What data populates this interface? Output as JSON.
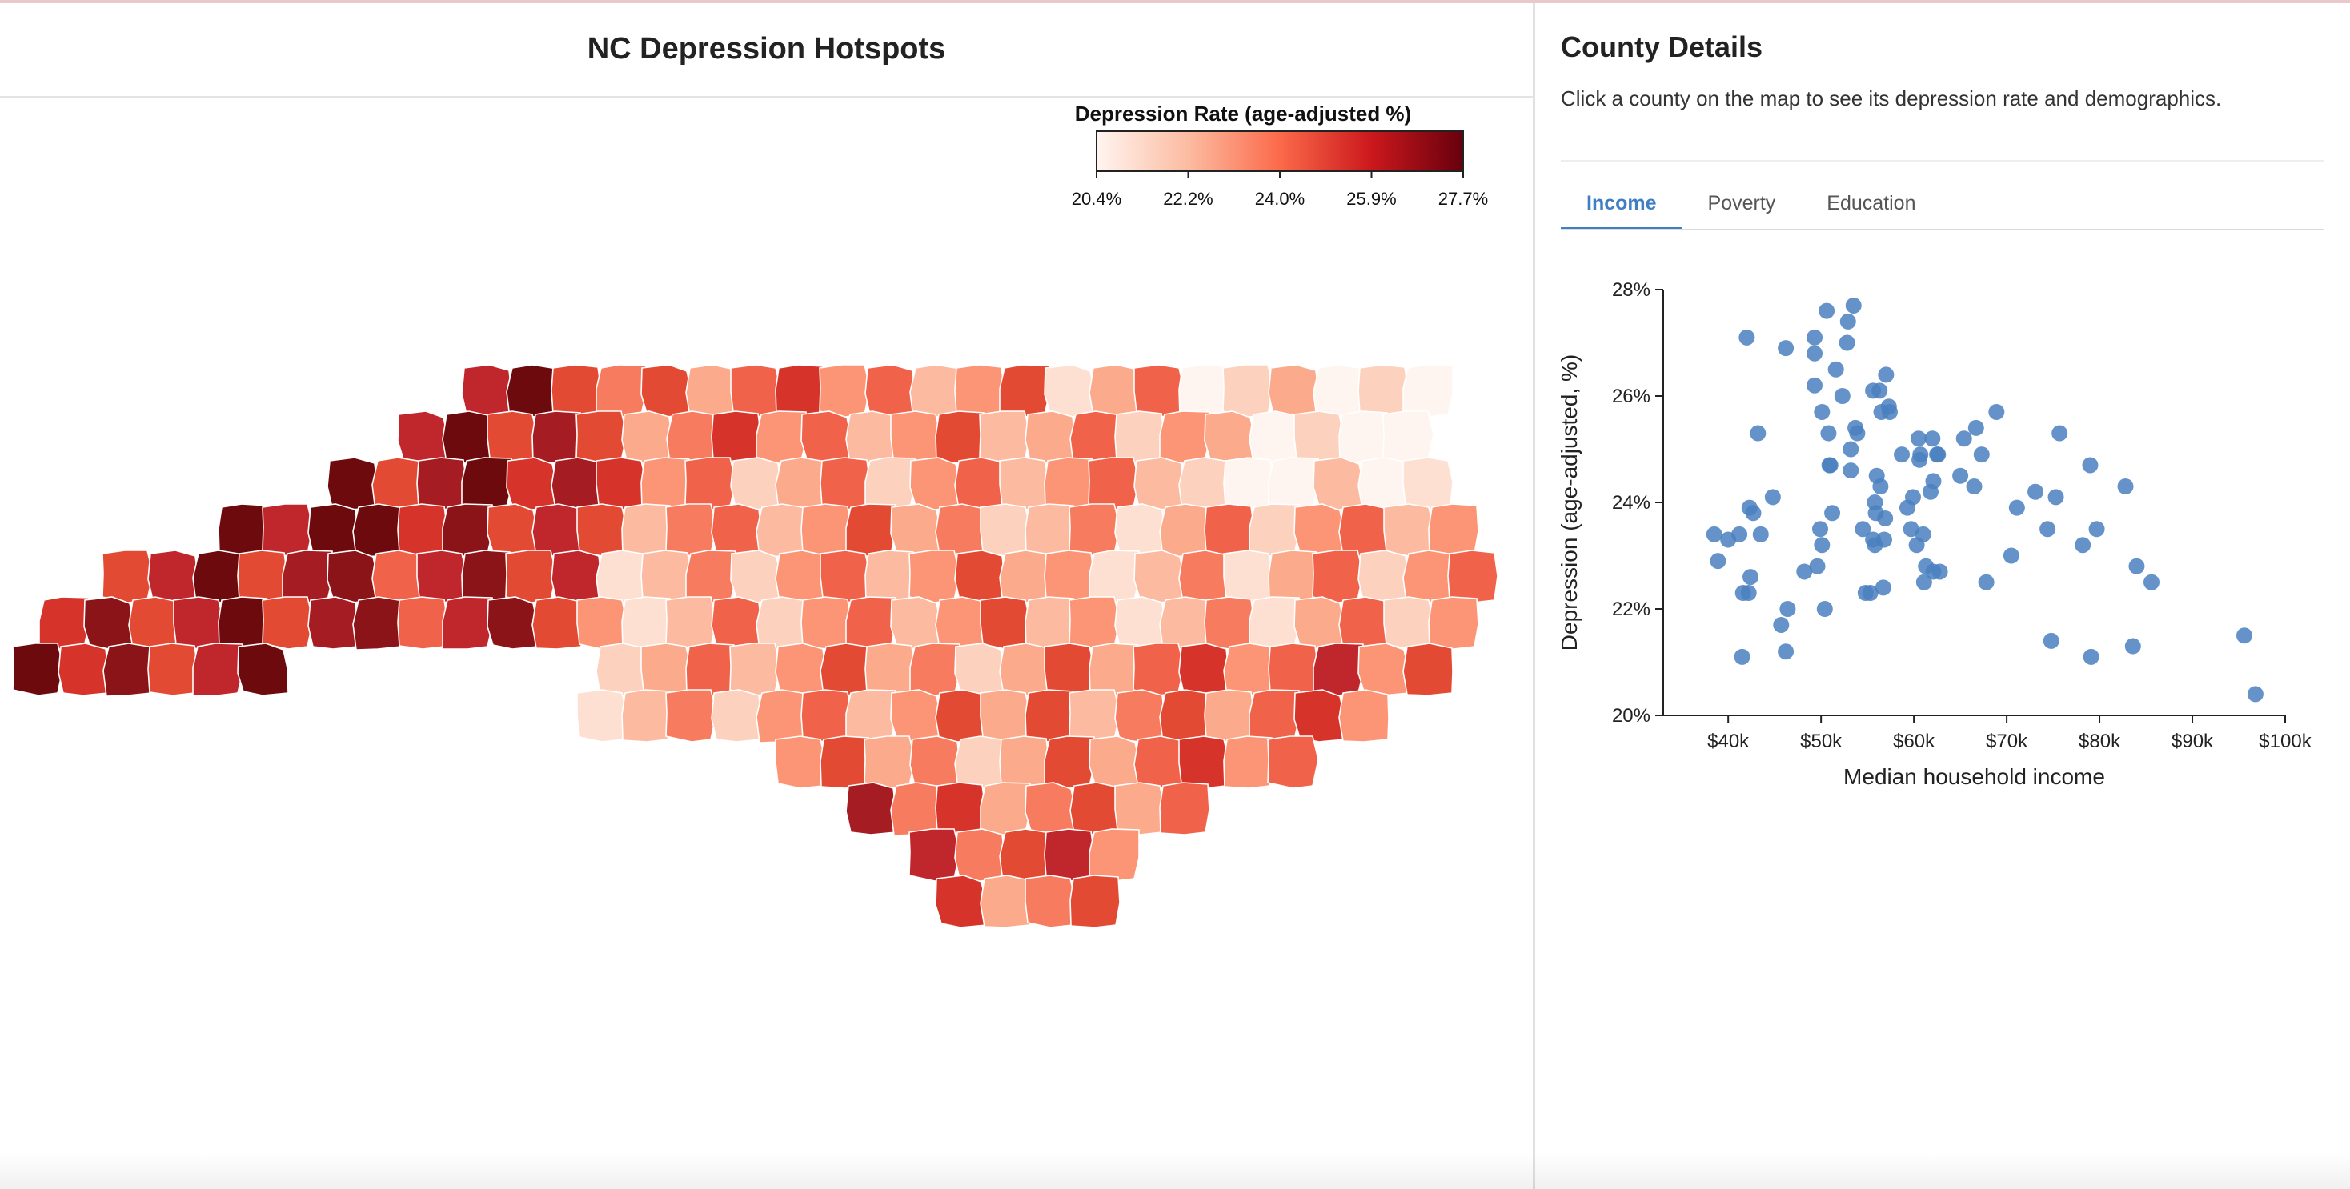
{
  "app": {
    "title": "NC Depression Hotspots"
  },
  "legend": {
    "title": "Depression Rate (age-adjusted %)",
    "ticks": [
      "20.4%",
      "22.2%",
      "24.0%",
      "25.9%",
      "27.7%"
    ],
    "colors": [
      "#fff5f0",
      "#fcbba1",
      "#fb6a4a",
      "#cb181d",
      "#67000d"
    ]
  },
  "details": {
    "title": "County Details",
    "hint": "Click a county on the map to see its depression rate and demographics."
  },
  "tabs": [
    {
      "label": "Income",
      "active": true
    },
    {
      "label": "Poverty",
      "active": false
    },
    {
      "label": "Education",
      "active": false
    }
  ],
  "colors": {
    "accent": "#3f7fc4",
    "dot": "#4a80c0"
  },
  "chart_data": {
    "type": "scatter",
    "xlabel": "Median household income",
    "ylabel": "Depression (age-adjusted, %)",
    "xlim": [
      33000,
      100000
    ],
    "ylim": [
      20,
      28
    ],
    "xticks": [
      {
        "value": 40000,
        "label": "$40k"
      },
      {
        "value": 50000,
        "label": "$50k"
      },
      {
        "value": 60000,
        "label": "$60k"
      },
      {
        "value": 70000,
        "label": "$70k"
      },
      {
        "value": 80000,
        "label": "$80k"
      },
      {
        "value": 90000,
        "label": "$90k"
      },
      {
        "value": 100000,
        "label": "$100k"
      }
    ],
    "yticks": [
      {
        "value": 20,
        "label": "20%"
      },
      {
        "value": 22,
        "label": "22%"
      },
      {
        "value": 24,
        "label": "24%"
      },
      {
        "value": 26,
        "label": "26%"
      },
      {
        "value": 28,
        "label": "28%"
      }
    ],
    "points": [
      [
        38500,
        23.4
      ],
      [
        38900,
        22.9
      ],
      [
        40000,
        23.3
      ],
      [
        41200,
        23.4
      ],
      [
        41600,
        22.3
      ],
      [
        42000,
        27.1
      ],
      [
        42200,
        22.3
      ],
      [
        42400,
        22.6
      ],
      [
        42300,
        23.9
      ],
      [
        42700,
        23.8
      ],
      [
        43200,
        25.3
      ],
      [
        43500,
        23.4
      ],
      [
        41500,
        21.1
      ],
      [
        44800,
        24.1
      ],
      [
        45700,
        21.7
      ],
      [
        46200,
        26.9
      ],
      [
        46400,
        22.0
      ],
      [
        46200,
        21.2
      ],
      [
        48200,
        22.7
      ],
      [
        49300,
        27.1
      ],
      [
        49300,
        26.8
      ],
      [
        49300,
        26.2
      ],
      [
        49600,
        22.8
      ],
      [
        49900,
        23.5
      ],
      [
        50100,
        25.7
      ],
      [
        50100,
        23.2
      ],
      [
        50600,
        27.6
      ],
      [
        50400,
        22.0
      ],
      [
        50800,
        25.3
      ],
      [
        50900,
        24.7
      ],
      [
        51000,
        24.7
      ],
      [
        51200,
        23.8
      ],
      [
        51600,
        26.5
      ],
      [
        52300,
        26.0
      ],
      [
        52800,
        27.0
      ],
      [
        52900,
        27.4
      ],
      [
        53200,
        24.6
      ],
      [
        53200,
        25.0
      ],
      [
        53500,
        27.7
      ],
      [
        53700,
        25.4
      ],
      [
        53900,
        25.3
      ],
      [
        54500,
        23.5
      ],
      [
        54800,
        22.3
      ],
      [
        55300,
        22.3
      ],
      [
        55600,
        26.1
      ],
      [
        55600,
        23.3
      ],
      [
        55800,
        23.2
      ],
      [
        55800,
        24.0
      ],
      [
        55900,
        23.8
      ],
      [
        56000,
        24.5
      ],
      [
        56300,
        26.1
      ],
      [
        56400,
        24.3
      ],
      [
        56500,
        25.7
      ],
      [
        56700,
        22.4
      ],
      [
        56800,
        23.3
      ],
      [
        56900,
        23.7
      ],
      [
        57000,
        26.4
      ],
      [
        57300,
        25.8
      ],
      [
        57400,
        25.7
      ],
      [
        58700,
        24.9
      ],
      [
        59300,
        23.9
      ],
      [
        59700,
        23.5
      ],
      [
        59900,
        24.1
      ],
      [
        60300,
        23.2
      ],
      [
        60500,
        25.2
      ],
      [
        60600,
        24.8
      ],
      [
        60700,
        24.9
      ],
      [
        61000,
        23.4
      ],
      [
        61300,
        22.8
      ],
      [
        61100,
        22.5
      ],
      [
        61800,
        24.2
      ],
      [
        62000,
        25.2
      ],
      [
        62100,
        24.4
      ],
      [
        62100,
        22.7
      ],
      [
        62500,
        24.9
      ],
      [
        62600,
        24.9
      ],
      [
        62800,
        22.7
      ],
      [
        65000,
        24.5
      ],
      [
        65400,
        25.2
      ],
      [
        66500,
        24.3
      ],
      [
        66700,
        25.4
      ],
      [
        67300,
        24.9
      ],
      [
        67800,
        22.5
      ],
      [
        68900,
        25.7
      ],
      [
        70500,
        23.0
      ],
      [
        71100,
        23.9
      ],
      [
        73100,
        24.2
      ],
      [
        74400,
        23.5
      ],
      [
        74800,
        21.4
      ],
      [
        75300,
        24.1
      ],
      [
        75700,
        25.3
      ],
      [
        78200,
        23.2
      ],
      [
        79000,
        24.7
      ],
      [
        79100,
        21.1
      ],
      [
        79700,
        23.5
      ],
      [
        82800,
        24.3
      ],
      [
        83600,
        21.3
      ],
      [
        84000,
        22.8
      ],
      [
        85600,
        22.5
      ],
      [
        95600,
        21.5
      ],
      [
        96800,
        20.4
      ]
    ]
  }
}
